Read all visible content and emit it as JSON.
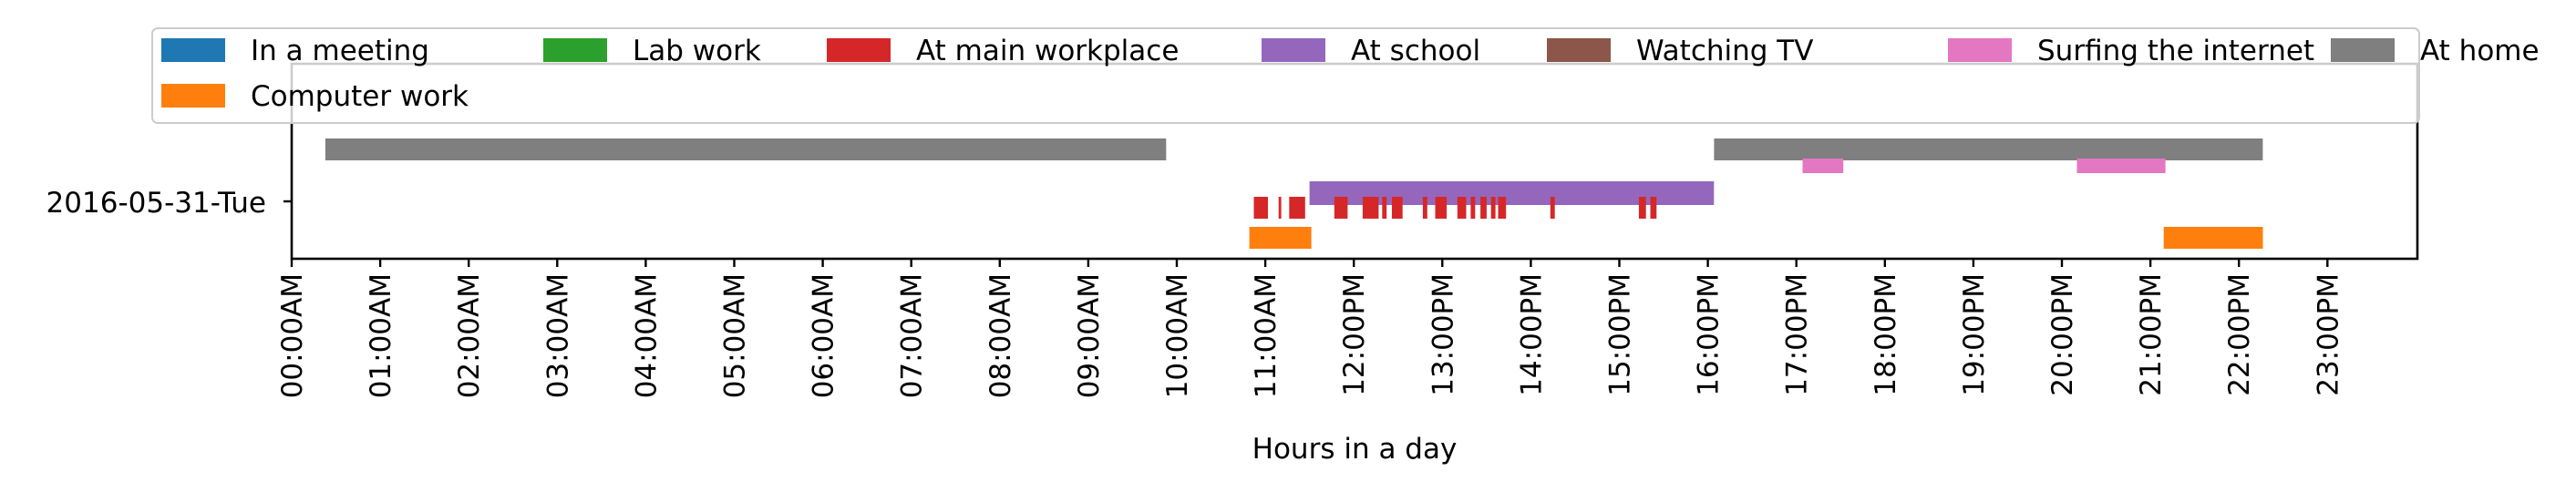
{
  "chart_data": {
    "type": "timeline",
    "xlabel": "Hours in a day",
    "xlim": [
      0,
      24
    ],
    "row_label": "2016-05-31-Tue",
    "ticks": [
      "00:00AM",
      "01:00AM",
      "02:00AM",
      "03:00AM",
      "04:00AM",
      "05:00AM",
      "06:00AM",
      "07:00AM",
      "08:00AM",
      "09:00AM",
      "10:00AM",
      "11:00AM",
      "12:00PM",
      "13:00PM",
      "14:00PM",
      "15:00PM",
      "16:00PM",
      "17:00PM",
      "18:00PM",
      "19:00PM",
      "20:00PM",
      "21:00PM",
      "22:00PM",
      "23:00PM"
    ],
    "legend_position": "top",
    "legend": [
      {
        "label": "In a meeting",
        "color": "#1f77b4"
      },
      {
        "label": "Lab work",
        "color": "#2ca02c"
      },
      {
        "label": "At main workplace",
        "color": "#d62728"
      },
      {
        "label": "At school",
        "color": "#9467bd"
      },
      {
        "label": "Watching TV",
        "color": "#8c564b"
      },
      {
        "label": "Surfing the internet",
        "color": "#e377c2"
      },
      {
        "label": "At home",
        "color": "#7f7f7f"
      },
      {
        "label": "Computer work",
        "color": "#ff7f0e"
      }
    ],
    "series": [
      {
        "name": "At home",
        "color": "#7f7f7f",
        "lane": "home",
        "intervals": [
          [
            0.38,
            9.88
          ],
          [
            16.07,
            22.27
          ]
        ]
      },
      {
        "name": "Surfing the internet",
        "color": "#e377c2",
        "lane": "surf",
        "intervals": [
          [
            17.07,
            17.53
          ],
          [
            20.17,
            21.17
          ]
        ]
      },
      {
        "name": "At school",
        "color": "#9467bd",
        "lane": "school",
        "intervals": [
          [
            11.5,
            16.07
          ]
        ]
      },
      {
        "name": "At main workplace",
        "color": "#d62728",
        "lane": "work",
        "intervals": [
          [
            10.87,
            11.03
          ],
          [
            11.15,
            11.18
          ],
          [
            11.27,
            11.45
          ],
          [
            11.78,
            11.93
          ],
          [
            12.1,
            12.28
          ],
          [
            12.32,
            12.37
          ],
          [
            12.43,
            12.55
          ],
          [
            12.78,
            12.83
          ],
          [
            12.92,
            13.05
          ],
          [
            13.17,
            13.27
          ],
          [
            13.32,
            13.37
          ],
          [
            13.43,
            13.5
          ],
          [
            13.55,
            13.6
          ],
          [
            13.63,
            13.72
          ],
          [
            14.22,
            14.27
          ],
          [
            15.22,
            15.3
          ],
          [
            15.35,
            15.42
          ]
        ]
      },
      {
        "name": "Computer work",
        "color": "#ff7f0e",
        "lane": "computer",
        "intervals": [
          [
            10.82,
            11.52
          ],
          [
            21.15,
            22.27
          ]
        ]
      }
    ]
  }
}
